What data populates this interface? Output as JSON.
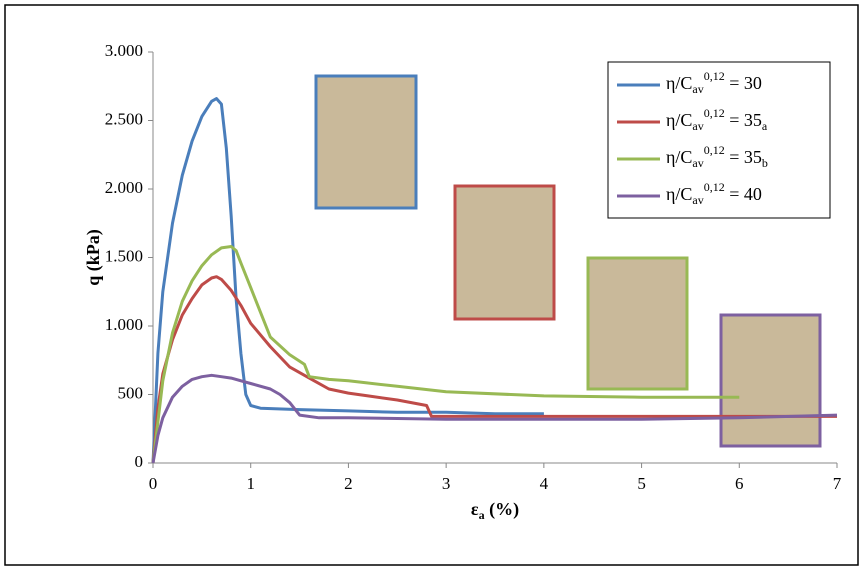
{
  "chart_data": {
    "type": "line",
    "y_label": "q (kPa)",
    "x_label": "εa (%)",
    "xlim": [
      0,
      7
    ],
    "ylim": [
      0,
      3000
    ],
    "xticks": [
      0,
      1,
      2,
      3,
      4,
      5,
      6,
      7
    ],
    "yticks": [
      0,
      500,
      {
        "value": 1000,
        "label": "1.000"
      },
      {
        "value": 1500,
        "label": "1.500"
      },
      {
        "value": 2000,
        "label": "2.000"
      },
      {
        "value": 2500,
        "label": "2.500"
      },
      {
        "value": 3000,
        "label": "3.000"
      }
    ],
    "series": [
      {
        "name": "η/Cav0,12 = 30",
        "color": "#4a7ebb",
        "x": [
          0,
          0.05,
          0.1,
          0.2,
          0.3,
          0.4,
          0.5,
          0.6,
          0.65,
          0.7,
          0.75,
          0.8,
          0.85,
          0.9,
          0.95,
          1.0,
          1.1,
          1.5,
          2,
          2.5,
          3,
          3.5,
          4
        ],
        "values": [
          0,
          800,
          1250,
          1750,
          2100,
          2350,
          2530,
          2640,
          2660,
          2620,
          2300,
          1800,
          1200,
          800,
          500,
          420,
          400,
          390,
          380,
          370,
          370,
          360,
          360
        ]
      },
      {
        "name": "η/Cav0,12 = 35a",
        "color": "#be4b48",
        "x": [
          0,
          0.05,
          0.1,
          0.2,
          0.3,
          0.4,
          0.5,
          0.6,
          0.65,
          0.7,
          0.8,
          0.9,
          1.0,
          1.2,
          1.4,
          1.6,
          1.8,
          2,
          2.2,
          2.5,
          2.8,
          2.85,
          3,
          4,
          5,
          6,
          7
        ],
        "values": [
          0,
          400,
          650,
          900,
          1080,
          1200,
          1300,
          1350,
          1360,
          1340,
          1260,
          1150,
          1020,
          850,
          700,
          620,
          540,
          510,
          490,
          460,
          420,
          340,
          340,
          340,
          340,
          340,
          340
        ]
      },
      {
        "name": "η/Cav0,12 = 35b",
        "color": "#98b954",
        "x": [
          0,
          0.1,
          0.2,
          0.3,
          0.4,
          0.5,
          0.6,
          0.7,
          0.8,
          0.85,
          0.9,
          1.0,
          1.1,
          1.2,
          1.4,
          1.55,
          1.6,
          1.8,
          2,
          2.5,
          3,
          4,
          5,
          6
        ],
        "values": [
          0,
          600,
          950,
          1180,
          1330,
          1440,
          1520,
          1570,
          1580,
          1550,
          1460,
          1280,
          1100,
          920,
          790,
          720,
          630,
          610,
          600,
          560,
          520,
          490,
          480,
          480
        ]
      },
      {
        "name": "η/Cav0,12 = 40",
        "color": "#7d60a0",
        "x": [
          0,
          0.05,
          0.1,
          0.2,
          0.3,
          0.4,
          0.5,
          0.6,
          0.7,
          0.8,
          1.0,
          1.2,
          1.3,
          1.4,
          1.5,
          1.7,
          2,
          3,
          4,
          5,
          6,
          7
        ],
        "values": [
          0,
          200,
          330,
          480,
          560,
          610,
          630,
          640,
          630,
          620,
          580,
          540,
          500,
          440,
          350,
          330,
          330,
          320,
          320,
          320,
          330,
          350
        ]
      }
    ]
  }
}
